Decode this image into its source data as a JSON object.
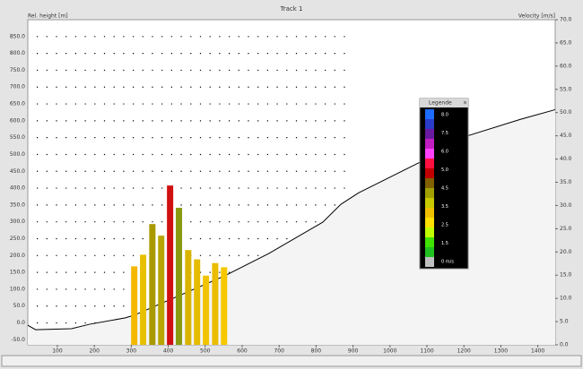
{
  "chart_data": {
    "type": "combo",
    "title": "Track 1",
    "ylabel": "Rel. height [m]",
    "y2label": "Velocity [m/s]",
    "xlim": [
      20,
      1447
    ],
    "xticks": [
      100,
      200,
      300,
      400,
      500,
      600,
      700,
      800,
      900,
      1000,
      1100,
      1200,
      1300,
      1400
    ],
    "ylim": [
      -65,
      900
    ],
    "yticks": [
      {
        "value": -50,
        "label": "-50.0"
      },
      {
        "value": 0,
        "label": "0.0"
      },
      {
        "value": 50,
        "label": "50.0"
      },
      {
        "value": 100,
        "label": "100.0"
      },
      {
        "value": 150,
        "label": "150.0"
      },
      {
        "value": 200,
        "label": "200.0"
      },
      {
        "value": 250,
        "label": "250.0"
      },
      {
        "value": 300,
        "label": "300.0"
      },
      {
        "value": 350,
        "label": "350.0"
      },
      {
        "value": 400,
        "label": "400.0"
      },
      {
        "value": 450,
        "label": "450.0"
      },
      {
        "value": 500,
        "label": "500.0"
      },
      {
        "value": 550,
        "label": "550.0"
      },
      {
        "value": 600,
        "label": "600.0"
      },
      {
        "value": 650,
        "label": "650.0"
      },
      {
        "value": 700,
        "label": "700.0"
      },
      {
        "value": 750,
        "label": "750.0"
      },
      {
        "value": 800,
        "label": "800.0"
      },
      {
        "value": 850,
        "label": "850.0"
      }
    ],
    "y2lim": [
      0,
      70
    ],
    "y2ticks": [
      {
        "value": 0,
        "label": "0.0"
      },
      {
        "value": 5,
        "label": "5.0"
      },
      {
        "value": 10,
        "label": "10.0"
      },
      {
        "value": 15,
        "label": "15.0"
      },
      {
        "value": 20,
        "label": "20.0"
      },
      {
        "value": 25,
        "label": "25.0"
      },
      {
        "value": 30,
        "label": "30.0"
      },
      {
        "value": 35,
        "label": "35.0"
      },
      {
        "value": 40,
        "label": "40.0"
      },
      {
        "value": 45,
        "label": "45.0"
      },
      {
        "value": 50,
        "label": "50.0"
      },
      {
        "value": 55,
        "label": "55.0"
      },
      {
        "value": 60,
        "label": "60.0"
      },
      {
        "value": 65,
        "label": "65.0"
      },
      {
        "value": 70,
        "label": "70.0"
      }
    ],
    "grid_xmax": 900,
    "series": [
      {
        "type": "area",
        "color": "#000000",
        "fill": "#f4f4f4",
        "x": [
          20,
          41,
          138,
          187,
          284,
          308,
          551,
          672,
          818,
          867,
          915,
          1085,
          1206,
          1352,
          1447
        ],
        "values": [
          -7,
          -20,
          -17,
          -4,
          15,
          23,
          139,
          206,
          299,
          352,
          386,
          479,
          554,
          604,
          633
        ]
      },
      {
        "type": "bar",
        "axis": "y2",
        "x": [
          308,
          332,
          357,
          381,
          405,
          429,
          454,
          478,
          502,
          527,
          551
        ],
        "values": [
          16.9,
          19.4,
          26.0,
          23.5,
          34.3,
          29.5,
          20.4,
          18.4,
          14.9,
          17.6,
          16.7
        ],
        "colors": [
          "#f4b800",
          "#e8c000",
          "#a89a00",
          "#b8a400",
          "#d01010",
          "#8a9a10",
          "#d8b400",
          "#e6bc00",
          "#f2c400",
          "#ecbc00",
          "#f6c800"
        ]
      }
    ],
    "legend": {
      "title": "Legende",
      "labels": [
        "8.0",
        "7.5",
        "6.0",
        "5.0",
        "4.5",
        "3.5",
        "2.5",
        "1.5",
        "0 m/s"
      ],
      "colors": [
        "#1e6cff",
        "#2a3cc8",
        "#6a1aa0",
        "#c01ec0",
        "#ff40ff",
        "#ff1040",
        "#c00000",
        "#806000",
        "#a0a000",
        "#c8c800",
        "#f0c000",
        "#ffe000",
        "#c0ff00",
        "#40e000",
        "#20c020",
        "#c0c0c0"
      ]
    }
  }
}
